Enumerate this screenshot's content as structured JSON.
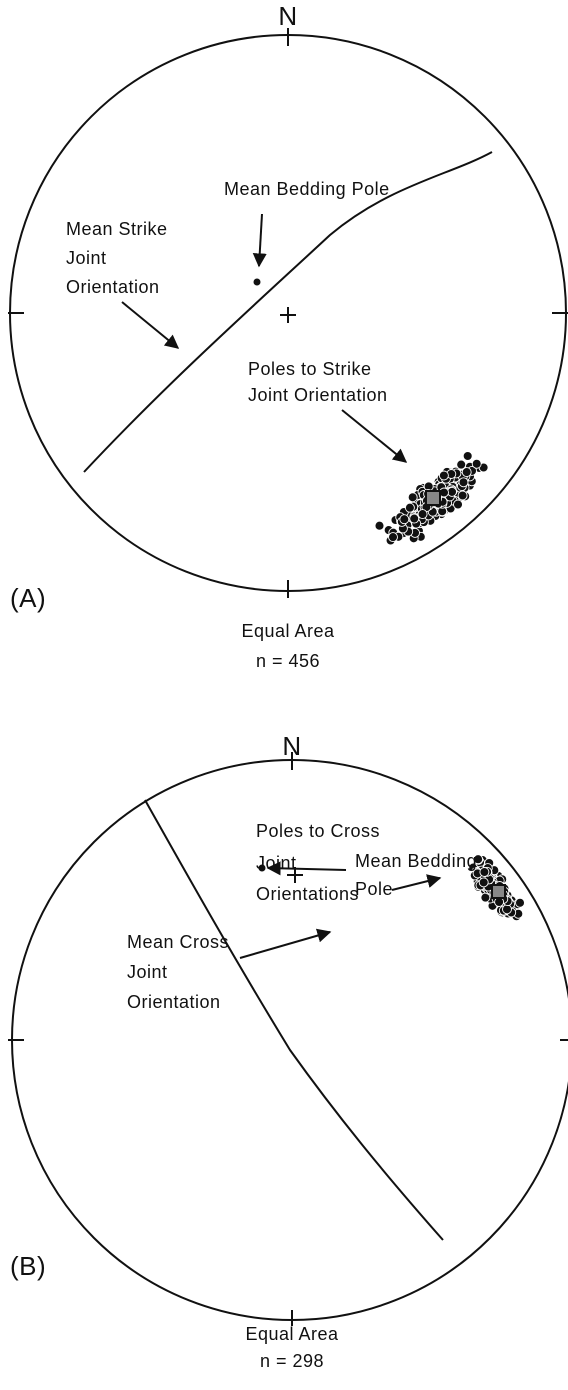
{
  "panels": [
    {
      "north": "N",
      "label": "(A)",
      "projection": "Equal Area",
      "count": "n = 456",
      "bedding_label": [
        "Mean Bedding Pole"
      ],
      "plane_label": [
        "Mean Strike",
        "Joint",
        "Orientation"
      ],
      "poles_label": [
        "Poles to Strike",
        "Joint  Orientation"
      ]
    },
    {
      "north": "N",
      "label": "(B)",
      "projection": "Equal Area",
      "count": "n = 298",
      "bedding_label": [
        "Mean Bedding",
        "Pole"
      ],
      "plane_label": [
        "Mean Cross",
        "Joint",
        "Orientation"
      ],
      "poles_label": [
        "Poles to Cross",
        "Joint",
        "Orientations"
      ]
    }
  ]
}
